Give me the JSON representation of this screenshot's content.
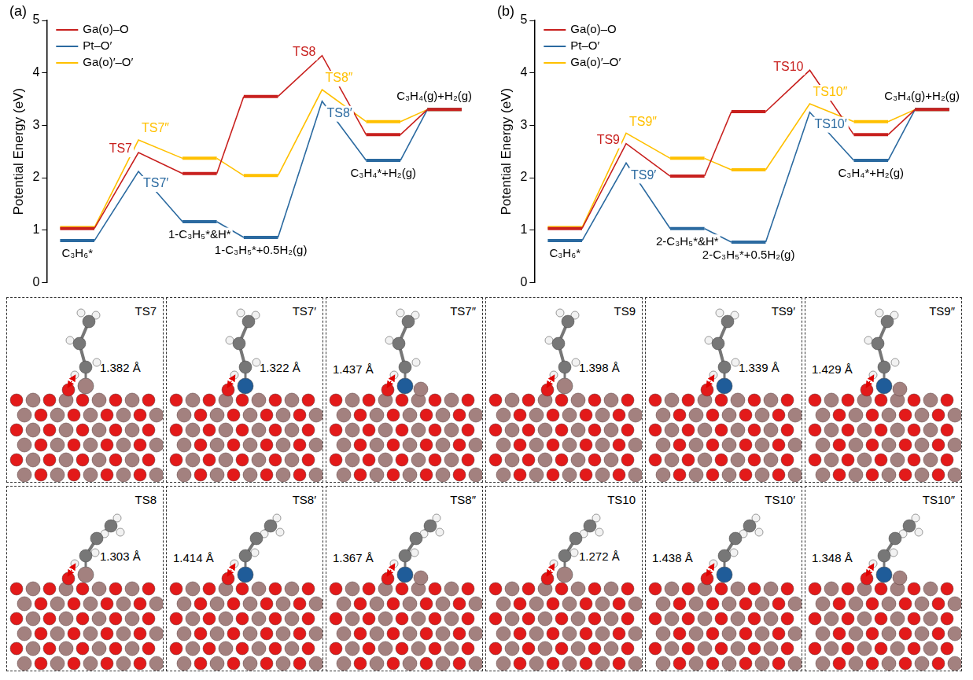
{
  "chart_data": [
    {
      "panel": "(a)",
      "type": "line",
      "y_label": "Potential Energy (eV)",
      "ylim": [
        0,
        5
      ],
      "yticks": [
        0,
        1,
        2,
        3,
        4,
        5
      ],
      "grid": false,
      "legend": "upper left",
      "tick_labels": "y",
      "categories": [
        "C₃H₆*",
        null,
        "1-C₃H₅*&H*",
        "1-C₃H₅*+0.5H₂(g)",
        null,
        "C₃H₄*+H₂(g)",
        "C₃H₄(g)+H₂(g)"
      ],
      "series": [
        {
          "name": "Ga(o)–O",
          "color": "#c8201e",
          "values": [
            1.03,
            2.48,
            2.08,
            3.55,
            4.33,
            2.82,
            3.3
          ],
          "point_labels": [
            null,
            "TS7",
            null,
            null,
            "TS8",
            null,
            null
          ]
        },
        {
          "name": "Pt–O′",
          "color": "#2b6aa0",
          "values": [
            0.8,
            2.12,
            1.16,
            0.86,
            3.46,
            2.33,
            3.3
          ],
          "point_labels": [
            null,
            "TS7′",
            null,
            null,
            "TS8′",
            null,
            null
          ]
        },
        {
          "name": "Ga(o)′–O′",
          "color": "#ffc000",
          "values": [
            1.05,
            2.72,
            2.37,
            2.04,
            3.68,
            3.07,
            3.3
          ],
          "point_labels": [
            null,
            "TS7″",
            null,
            null,
            "TS8″",
            null,
            null
          ]
        }
      ]
    },
    {
      "panel": "(b)",
      "type": "line",
      "y_label": "Potential Energy (eV)",
      "ylim": [
        0,
        5
      ],
      "yticks": [
        0,
        1,
        2,
        3,
        4,
        5
      ],
      "grid": false,
      "legend": "upper left",
      "tick_labels": "y",
      "categories": [
        "C₃H₆*",
        null,
        "2-C₃H₅*&H*",
        "2-C₃H₅*+0.5H₂(g)",
        null,
        "C₃H₄*+H₂(g)",
        "C₃H₄(g)+H₂(g)"
      ],
      "series": [
        {
          "name": "Ga(o)–O",
          "color": "#c8201e",
          "values": [
            1.03,
            2.65,
            2.03,
            3.26,
            4.05,
            2.82,
            3.3
          ],
          "point_labels": [
            null,
            "TS9",
            null,
            null,
            "TS10",
            null,
            null
          ]
        },
        {
          "name": "Pt–O′",
          "color": "#2b6aa0",
          "values": [
            0.8,
            2.28,
            1.03,
            0.77,
            3.25,
            2.33,
            3.3
          ],
          "point_labels": [
            null,
            "TS9′",
            null,
            null,
            "TS10′",
            null,
            null
          ]
        },
        {
          "name": "Ga(o)′–O′",
          "color": "#ffc000",
          "values": [
            1.05,
            2.85,
            2.37,
            2.15,
            3.41,
            3.07,
            3.3
          ],
          "point_labels": [
            null,
            "TS9″",
            null,
            null,
            "TS10″",
            null,
            null
          ]
        }
      ]
    }
  ],
  "structures": [
    {
      "label": "TS7",
      "bond": "1.382 Å"
    },
    {
      "label": "TS7′",
      "bond": "1.322 Å"
    },
    {
      "label": "TS7″",
      "bond": "1.437 Å"
    },
    {
      "label": "TS9",
      "bond": "1.398 Å"
    },
    {
      "label": "TS9′",
      "bond": "1.339 Å"
    },
    {
      "label": "TS9″",
      "bond": "1.429 Å"
    },
    {
      "label": "TS8",
      "bond": "1.303 Å"
    },
    {
      "label": "TS8′",
      "bond": "1.414 Å"
    },
    {
      "label": "TS8″",
      "bond": "1.367 Å"
    },
    {
      "label": "TS10",
      "bond": "1.272 Å"
    },
    {
      "label": "TS10′",
      "bond": "1.438 Å"
    },
    {
      "label": "TS10″",
      "bond": "1.348 Å"
    }
  ]
}
